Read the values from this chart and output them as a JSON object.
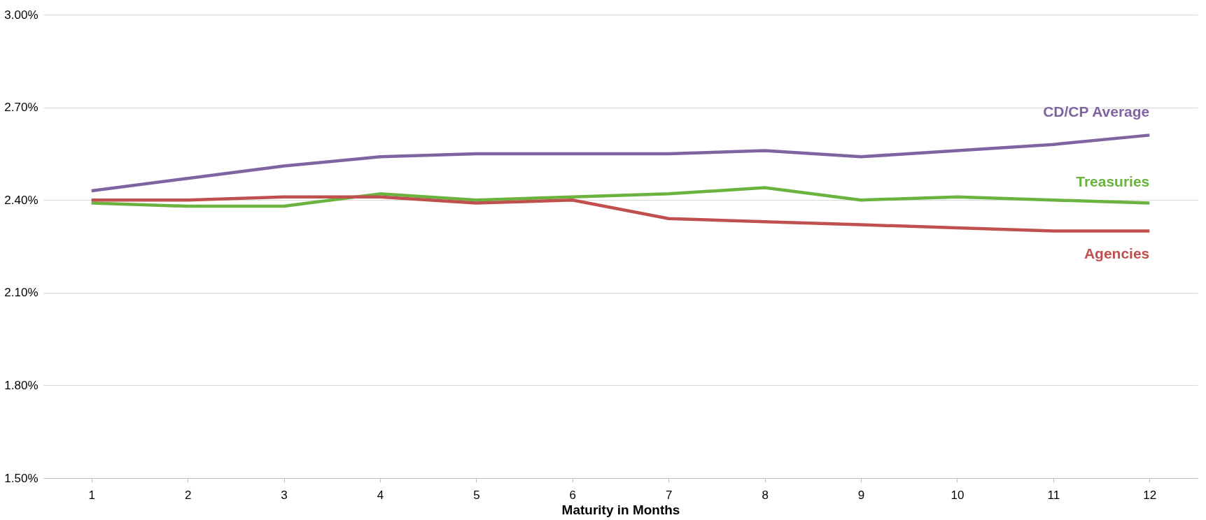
{
  "chart_data": {
    "type": "line",
    "xlabel": "Maturity in Months",
    "categories": [
      "1",
      "2",
      "3",
      "4",
      "5",
      "6",
      "7",
      "8",
      "9",
      "10",
      "11",
      "12"
    ],
    "series": [
      {
        "name": "CD/CP Average",
        "color": "#8064a2",
        "values": [
          2.43,
          2.47,
          2.51,
          2.54,
          2.55,
          2.55,
          2.55,
          2.56,
          2.54,
          2.56,
          2.58,
          2.61
        ]
      },
      {
        "name": "Treasuries",
        "color": "#6ab33f",
        "values": [
          2.39,
          2.38,
          2.38,
          2.42,
          2.4,
          2.41,
          2.42,
          2.44,
          2.4,
          2.41,
          2.4,
          2.39
        ]
      },
      {
        "name": "Agencies",
        "color": "#c0504d",
        "values": [
          2.4,
          2.4,
          2.41,
          2.41,
          2.39,
          2.4,
          2.34,
          2.33,
          2.32,
          2.31,
          2.3,
          2.3
        ]
      }
    ],
    "ylim": [
      1.5,
      3.0
    ],
    "yticks": [
      {
        "value": 1.5,
        "label": "1.50%"
      },
      {
        "value": 1.8,
        "label": "1.80%"
      },
      {
        "value": 2.1,
        "label": "2.10%"
      },
      {
        "value": 2.4,
        "label": "2.40%"
      },
      {
        "value": 2.7,
        "label": "2.70%"
      },
      {
        "value": 3.0,
        "label": "3.00%"
      }
    ],
    "grid": "y",
    "legend": false,
    "marker": "none",
    "line_style": "solid"
  }
}
